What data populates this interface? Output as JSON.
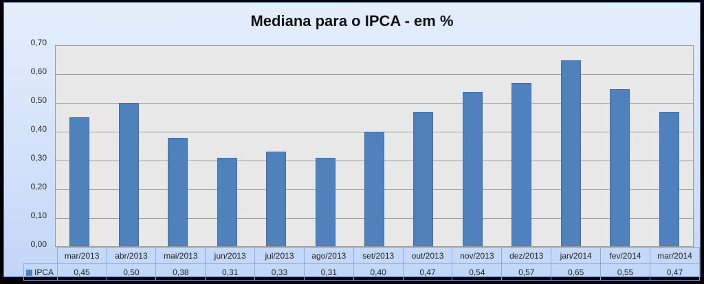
{
  "chart": {
    "title": "Mediana para o IPCA - em %",
    "bar_color": "#4f81bd",
    "plot_background": "#e8e8e8",
    "y_ticks": [
      "0,70",
      "0,60",
      "0,50",
      "0,40",
      "0,30",
      "0,20",
      "0,10",
      "0,00"
    ],
    "legend_label": "IPCA",
    "categories": [
      "mar/2013",
      "abr/2013",
      "mai/2013",
      "jun/2013",
      "jul/2013",
      "ago/2013",
      "set/2013",
      "out/2013",
      "nov/2013",
      "dez/2013",
      "jan/2014",
      "fev/2014",
      "mar/2014"
    ],
    "value_labels": [
      "0,45",
      "0,50",
      "0,38",
      "0,31",
      "0,33",
      "0,31",
      "0,40",
      "0,47",
      "0,54",
      "0,57",
      "0,65",
      "0,55",
      "0,47"
    ]
  },
  "chart_data": {
    "type": "bar",
    "title": "Mediana para o IPCA - em %",
    "xlabel": "",
    "ylabel": "",
    "ylim": [
      0,
      0.7
    ],
    "y_ticks": [
      0.0,
      0.1,
      0.2,
      0.3,
      0.4,
      0.5,
      0.6,
      0.7
    ],
    "grid": true,
    "legend_position": "data-table",
    "categories": [
      "mar/2013",
      "abr/2013",
      "mai/2013",
      "jun/2013",
      "jul/2013",
      "ago/2013",
      "set/2013",
      "out/2013",
      "nov/2013",
      "dez/2013",
      "jan/2014",
      "fev/2014",
      "mar/2014"
    ],
    "series": [
      {
        "name": "IPCA",
        "values": [
          0.45,
          0.5,
          0.38,
          0.31,
          0.33,
          0.31,
          0.4,
          0.47,
          0.54,
          0.57,
          0.65,
          0.55,
          0.47
        ]
      }
    ]
  }
}
